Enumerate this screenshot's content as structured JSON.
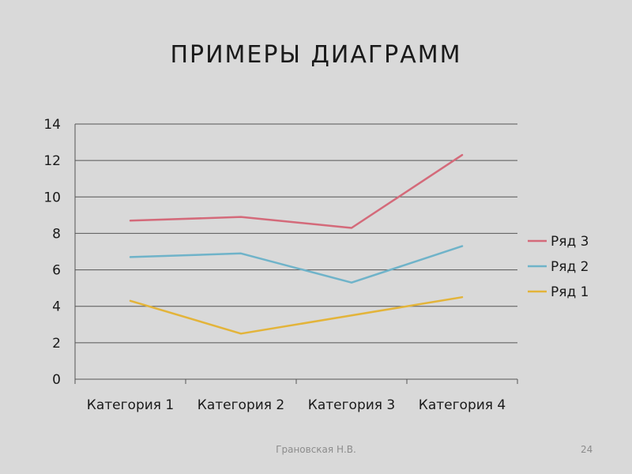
{
  "slide": {
    "title": "ПРИМЕРЫ ДИАГРАММ",
    "footer": "Грановская Н.В.",
    "page_number": "24"
  },
  "chart_data": {
    "type": "line",
    "categories": [
      "Категория 1",
      "Категория 2",
      "Категория 3",
      "Категория 4"
    ],
    "series": [
      {
        "name": "Ряд 1",
        "values": [
          4.3,
          2.5,
          3.5,
          4.5
        ],
        "color": "#e3b43a"
      },
      {
        "name": "Ряд 2",
        "values": [
          6.7,
          6.9,
          5.3,
          7.3
        ],
        "color": "#6fb3c9"
      },
      {
        "name": "Ряд 3",
        "values": [
          8.7,
          8.9,
          8.3,
          12.3
        ],
        "color": "#d46a7a"
      }
    ],
    "ylim": [
      0,
      14
    ],
    "yticks": [
      "0",
      "2",
      "4",
      "6",
      "8",
      "10",
      "12",
      "14"
    ],
    "grid": true,
    "legend_position": "right",
    "legend_order": [
      2,
      1,
      0
    ],
    "gridline_color": "#555555",
    "axis_text_color": "#1a1a1a"
  }
}
